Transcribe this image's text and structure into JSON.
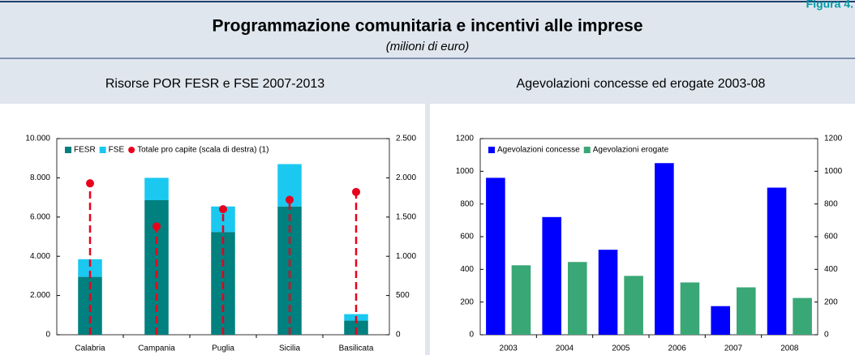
{
  "figure_label": "Figura 4.",
  "title": "Programmazione comunitaria e incentivi alle imprese",
  "subtitle": "(milioni di euro)",
  "chart_data": [
    {
      "type": "bar",
      "title": "Risorse POR FESR e FSE 2007-2013",
      "stacked": true,
      "categories": [
        "Calabria",
        "Campania",
        "Puglia",
        "Sicilia",
        "Basilicata"
      ],
      "series": [
        {
          "name": "FESR",
          "color": "#00807f",
          "values": [
            2950,
            6860,
            5240,
            6540,
            720
          ]
        },
        {
          "name": "FSE",
          "color": "#1ac8f0",
          "values": [
            900,
            1140,
            1300,
            2160,
            330
          ]
        },
        {
          "name": "Totale pro capite (scala di destra) (1)",
          "color": "#e8001c",
          "type": "scatter",
          "axis": "y2",
          "values": [
            1930,
            1380,
            1600,
            1720,
            1820
          ]
        }
      ],
      "ylim": [
        0,
        10000
      ],
      "yticks": [
        0,
        {
          "value": 2000,
          "label": "2.000"
        },
        {
          "value": 4000,
          "label": "4.000"
        },
        {
          "value": 6000,
          "label": "6.000"
        },
        {
          "value": 8000,
          "label": "8.000"
        },
        {
          "value": 10000,
          "label": "10.000"
        }
      ],
      "y2lim": [
        0,
        2500
      ],
      "y2ticks": [
        0,
        500,
        {
          "value": 1000,
          "label": "1.000"
        },
        {
          "value": 1500,
          "label": "1.500"
        },
        {
          "value": 2000,
          "label": "2.000"
        },
        {
          "value": 2500,
          "label": "2.500"
        }
      ],
      "legend": "top-left"
    },
    {
      "type": "bar",
      "title": "Agevolazioni concesse ed erogate 2003-08",
      "categories": [
        "2003",
        "2004",
        "2005",
        "2006",
        "2007",
        "2008"
      ],
      "series": [
        {
          "name": "Agevolazioni concesse",
          "color": "#0000ff",
          "values": [
            960,
            720,
            520,
            1050,
            175,
            900
          ]
        },
        {
          "name": "Agevolazioni erogate",
          "color": "#3aa776",
          "values": [
            425,
            445,
            360,
            320,
            290,
            225
          ]
        }
      ],
      "ylim": [
        0,
        1200
      ],
      "yticks": [
        0,
        200,
        400,
        600,
        800,
        1000,
        1200
      ],
      "y2lim": [
        0,
        1200
      ],
      "y2ticks": [
        0,
        200,
        400,
        600,
        800,
        1000,
        1200
      ],
      "legend": "top-left"
    }
  ]
}
